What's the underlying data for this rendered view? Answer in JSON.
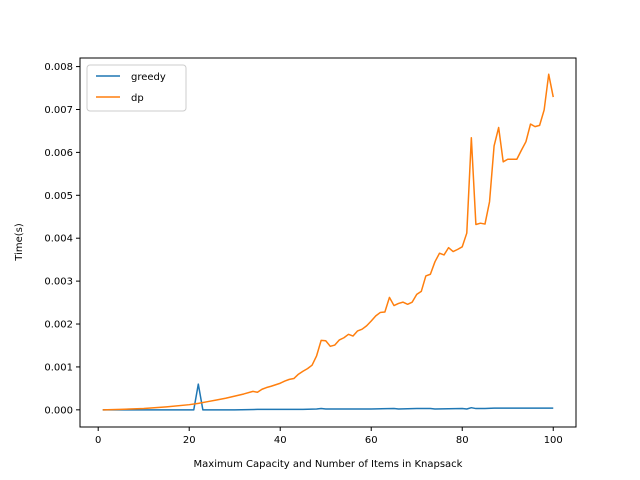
{
  "chart_data": {
    "type": "line",
    "title": "",
    "xlabel": "Maximum Capacity and Number of Items in Knapsack",
    "ylabel": "Time(s)",
    "xlim": [
      -4,
      105
    ],
    "ylim": [
      -0.0004,
      0.0082
    ],
    "x_ticks": [
      0,
      20,
      40,
      60,
      80,
      100
    ],
    "x_tick_labels": [
      "0",
      "20",
      "40",
      "60",
      "80",
      "100"
    ],
    "y_ticks": [
      0.0,
      0.001,
      0.002,
      0.003,
      0.004,
      0.005,
      0.006,
      0.007,
      0.008
    ],
    "y_tick_labels": [
      "0.000",
      "0.001",
      "0.002",
      "0.003",
      "0.004",
      "0.005",
      "0.006",
      "0.007",
      "0.008"
    ],
    "grid": false,
    "legend_position": "top-left",
    "series": [
      {
        "name": "greedy",
        "color": "#1f77b4",
        "x": [
          1,
          5,
          10,
          15,
          20,
          21,
          22,
          23,
          25,
          30,
          35,
          40,
          45,
          48,
          49,
          50,
          55,
          60,
          65,
          66,
          70,
          73,
          74,
          80,
          81,
          82,
          83,
          85,
          87,
          88,
          90,
          95,
          100
        ],
        "y": [
          0.0,
          0.0,
          0.0,
          0.0,
          0.0,
          0.0,
          0.0006,
          0.0,
          0.0,
          0.0,
          1e-05,
          1e-05,
          1e-05,
          2e-05,
          3e-05,
          2e-05,
          2e-05,
          2e-05,
          3e-05,
          2e-05,
          3e-05,
          3e-05,
          2e-05,
          3e-05,
          2e-05,
          5e-05,
          3e-05,
          3e-05,
          4e-05,
          4e-05,
          4e-05,
          4e-05,
          4e-05
        ]
      },
      {
        "name": "dp",
        "color": "#ff7f0e",
        "x": [
          1,
          5,
          10,
          15,
          20,
          22,
          24,
          26,
          28,
          30,
          32,
          34,
          35,
          36,
          37,
          38,
          40,
          41,
          42,
          43,
          44,
          45,
          46,
          47,
          48,
          49,
          50,
          51,
          52,
          53,
          54,
          55,
          56,
          57,
          58,
          59,
          60,
          61,
          62,
          63,
          64,
          65,
          66,
          67,
          68,
          69,
          70,
          71,
          72,
          73,
          74,
          75,
          76,
          77,
          78,
          79,
          80,
          81,
          82,
          83,
          84,
          85,
          86,
          87,
          88,
          89,
          90,
          91,
          92,
          93,
          94,
          95,
          96,
          97,
          98,
          99,
          100
        ],
        "y": [
          0.0,
          1e-05,
          3e-05,
          7e-05,
          0.00012,
          0.00015,
          0.00019,
          0.00023,
          0.00027,
          0.00032,
          0.00037,
          0.00043,
          0.00041,
          0.00048,
          0.00052,
          0.00055,
          0.00062,
          0.00067,
          0.00071,
          0.00073,
          0.00083,
          0.0009,
          0.00096,
          0.00104,
          0.00126,
          0.00162,
          0.00161,
          0.00148,
          0.00151,
          0.00163,
          0.00168,
          0.00176,
          0.00172,
          0.00184,
          0.00188,
          0.00196,
          0.00207,
          0.00219,
          0.00227,
          0.00228,
          0.00262,
          0.00243,
          0.00248,
          0.00251,
          0.00246,
          0.00251,
          0.00269,
          0.00276,
          0.00312,
          0.00316,
          0.00345,
          0.00365,
          0.00361,
          0.00378,
          0.00369,
          0.00374,
          0.0038,
          0.00412,
          0.00634,
          0.00432,
          0.00435,
          0.00433,
          0.00485,
          0.00615,
          0.00658,
          0.00578,
          0.00584,
          0.00584,
          0.00584,
          0.00605,
          0.00625,
          0.00666,
          0.0066,
          0.00663,
          0.00699,
          0.00782,
          0.00729
        ]
      }
    ]
  }
}
